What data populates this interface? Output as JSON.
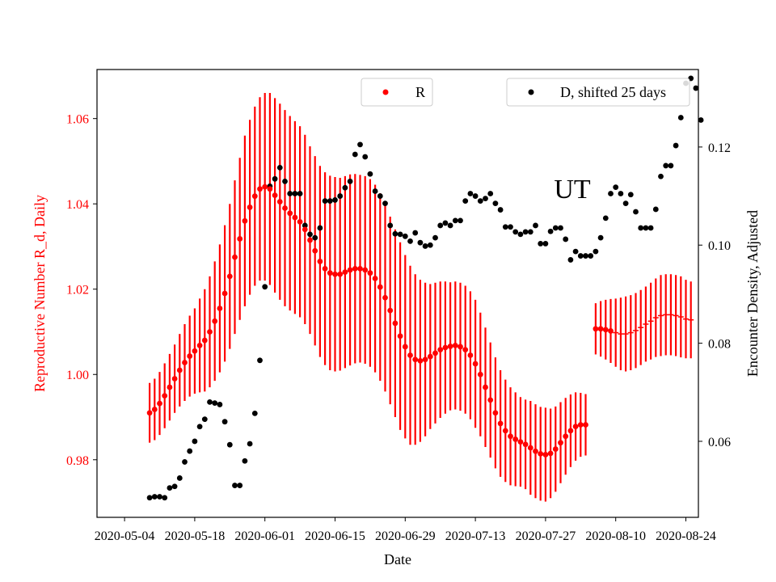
{
  "chart_data": {
    "type": "scatter",
    "annotation": "UT",
    "xlabel": "Date",
    "ylabel_left": "Reproductive Number R_d, Daily",
    "ylabel_right": "Encounter Density, Adjusted",
    "x_ticks": [
      "2020-05-04",
      "2020-05-18",
      "2020-06-01",
      "2020-06-15",
      "2020-06-29",
      "2020-07-13",
      "2020-07-27",
      "2020-08-10",
      "2020-08-24"
    ],
    "y_ticks_left": [
      "0.98",
      "1.00",
      "1.02",
      "1.04",
      "1.06"
    ],
    "y_ticks_right": [
      "0.06",
      "0.08",
      "0.10",
      "0.12"
    ],
    "ylim_left": [
      0.9665,
      1.0715
    ],
    "ylim_right": [
      0.0445,
      0.1358
    ],
    "xlim_days": [
      -5.5,
      114.5
    ],
    "legend": {
      "r_label": "R",
      "d_label": "D, shifted 25 days"
    },
    "colors": {
      "r": "#ff0000",
      "d": "#000000"
    },
    "series_r": {
      "name": "R",
      "start": "2020-05-09",
      "note": "day index = days since 2020-05-04; 0.0 marks a gap",
      "values": [
        0.991,
        0.9918,
        0.9932,
        0.995,
        0.997,
        0.999,
        1.001,
        1.0028,
        1.0043,
        1.0055,
        1.0068,
        1.008,
        1.01,
        1.0125,
        1.0155,
        1.019,
        1.023,
        1.0275,
        1.0318,
        1.036,
        1.0392,
        1.0418,
        1.0435,
        1.044,
        1.0435,
        1.042,
        1.0405,
        1.039,
        1.0378,
        1.0368,
        1.0358,
        1.034,
        1.0315,
        1.029,
        1.0265,
        1.0248,
        1.0238,
        1.0235,
        1.0235,
        1.024,
        1.0245,
        1.0248,
        1.0248,
        1.0245,
        1.0238,
        1.0225,
        1.0205,
        1.018,
        1.015,
        1.012,
        1.009,
        1.0065,
        1.0045,
        1.0035,
        1.0032,
        1.0035,
        1.0042,
        1.005,
        1.0058,
        1.0063,
        1.0066,
        1.0068,
        1.0065,
        1.0058,
        1.0045,
        1.0025,
        1.0,
        0.997,
        0.994,
        0.991,
        0.9885,
        0.9868,
        0.9855,
        0.9848,
        0.9842,
        0.9836,
        0.9828,
        0.982,
        0.9814,
        0.9812,
        0.9815,
        0.9825,
        0.984,
        0.9855,
        0.9868,
        0.9878,
        0.9882,
        0.9882,
        0.0,
        1.0107,
        1.0107,
        1.0105,
        1.0102,
        1.0098,
        1.0095,
        1.0095,
        1.0098,
        1.0103,
        1.011,
        1.0118,
        1.0125,
        1.0133,
        1.0138,
        1.014,
        1.014,
        1.0138,
        1.0135,
        1.013,
        1.0128
      ],
      "errors": [
        0.007,
        0.0072,
        0.0074,
        0.0076,
        0.0078,
        0.008,
        0.0085,
        0.009,
        0.0095,
        0.01,
        0.011,
        0.012,
        0.013,
        0.014,
        0.015,
        0.016,
        0.017,
        0.018,
        0.019,
        0.02,
        0.0205,
        0.021,
        0.0215,
        0.022,
        0.0225,
        0.0228,
        0.023,
        0.023,
        0.0228,
        0.0226,
        0.0224,
        0.0222,
        0.022,
        0.0222,
        0.0224,
        0.0226,
        0.0228,
        0.0228,
        0.0226,
        0.0225,
        0.0224,
        0.0222,
        0.022,
        0.022,
        0.022,
        0.022,
        0.022,
        0.022,
        0.022,
        0.022,
        0.022,
        0.0215,
        0.021,
        0.02,
        0.019,
        0.018,
        0.017,
        0.0165,
        0.016,
        0.0155,
        0.015,
        0.015,
        0.015,
        0.015,
        0.015,
        0.015,
        0.0145,
        0.014,
        0.0135,
        0.013,
        0.0125,
        0.012,
        0.0115,
        0.011,
        0.0105,
        0.0105,
        0.011,
        0.011,
        0.011,
        0.011,
        0.0105,
        0.01,
        0.0095,
        0.009,
        0.0085,
        0.008,
        0.0075,
        0.0072,
        0.0,
        0.006,
        0.0065,
        0.007,
        0.0075,
        0.008,
        0.0085,
        0.0088,
        0.0088,
        0.0088,
        0.0088,
        0.0088,
        0.009,
        0.0092,
        0.0095,
        0.0095,
        0.0095,
        0.0095,
        0.0095,
        0.0092,
        0.009
      ]
    },
    "series_d": {
      "name": "D, shifted 25 days",
      "start": "2020-05-09",
      "values": [
        0.0485,
        0.0487,
        0.0487,
        0.0485,
        0.0505,
        0.0508,
        0.0525,
        0.0558,
        0.058,
        0.06,
        0.063,
        0.0645,
        0.068,
        0.0678,
        0.0675,
        0.064,
        0.0593,
        0.051,
        0.051,
        0.056,
        0.0595,
        0.0657,
        0.0765,
        0.0915,
        0.112,
        0.1135,
        0.1158,
        0.113,
        0.1105,
        0.1105,
        0.1105,
        0.104,
        0.1022,
        0.1015,
        0.1035,
        0.109,
        0.109,
        0.1092,
        0.11,
        0.1117,
        0.113,
        0.1185,
        0.1205,
        0.118,
        0.1145,
        0.111,
        0.11,
        0.1085,
        0.104,
        0.1023,
        0.1022,
        0.1018,
        0.1008,
        0.1025,
        0.1005,
        0.0998,
        0.1,
        0.1015,
        0.104,
        0.1045,
        0.104,
        0.105,
        0.105,
        0.109,
        0.1105,
        0.11,
        0.109,
        0.1095,
        0.1105,
        0.1085,
        0.1072,
        0.1037,
        0.1037,
        0.1027,
        0.1022,
        0.1027,
        0.1027,
        0.104,
        0.1003,
        0.1003,
        0.1028,
        0.1035,
        0.1035,
        0.1012,
        0.097,
        0.0987,
        0.0978,
        0.0978,
        0.0978,
        0.0987,
        0.1015,
        0.1055,
        0.1105,
        0.1118,
        0.1105,
        0.1085,
        0.1103,
        0.1068,
        0.1035,
        0.1035,
        0.1035,
        0.1073,
        0.114,
        0.1162,
        0.1162,
        0.1203,
        0.126,
        0.133,
        0.134,
        0.132,
        0.1255
      ]
    }
  }
}
